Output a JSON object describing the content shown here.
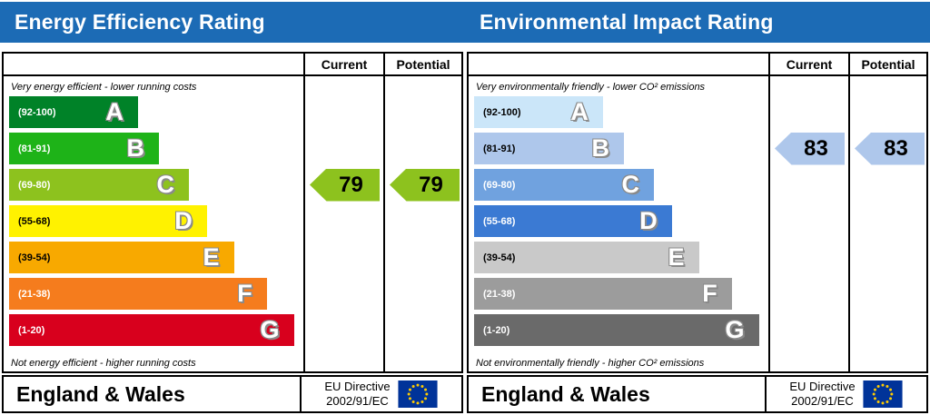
{
  "theme": {
    "header_bg": "#1C6BB5",
    "border": "#000000",
    "flag_bg": "#003399",
    "flag_stars": "#FFCC00"
  },
  "chart_data": [
    {
      "type": "bar",
      "title": "Energy Efficiency Rating",
      "orientation": "horizontal",
      "categories": [
        "A",
        "B",
        "C",
        "D",
        "E",
        "F",
        "G"
      ],
      "band_ranges": [
        "92-100",
        "81-91",
        "69-80",
        "55-68",
        "39-54",
        "21-38",
        "1-20"
      ],
      "values": [
        43,
        50,
        60,
        66,
        75,
        86,
        95
      ],
      "values_note": "relative bar lengths in % of chart column width",
      "current": 79,
      "potential": 79,
      "current_band": "C",
      "potential_band": "C",
      "top_caption": "Very energy efficient - lower running costs",
      "bottom_caption": "Not energy efficient - higher running costs"
    },
    {
      "type": "bar",
      "title": "Environmental Impact Rating",
      "orientation": "horizontal",
      "categories": [
        "A",
        "B",
        "C",
        "D",
        "E",
        "F",
        "G"
      ],
      "band_ranges": [
        "92-100",
        "81-91",
        "69-80",
        "55-68",
        "39-54",
        "21-38",
        "1-20"
      ],
      "values": [
        43,
        50,
        60,
        66,
        75,
        86,
        95
      ],
      "values_note": "relative bar lengths in % of chart column width",
      "current": 83,
      "potential": 83,
      "current_band": "B",
      "potential_band": "B",
      "top_caption": "Very environmentally friendly - lower CO² emissions",
      "bottom_caption": "Not environmentally friendly - higher CO² emissions"
    }
  ],
  "panels": [
    {
      "title": "Energy Efficiency Rating",
      "col_current": "Current",
      "col_potential": "Potential",
      "caption_top": "Very energy efficient - lower running costs",
      "caption_bottom": "Not energy efficient - higher running costs",
      "bands": [
        {
          "letter": "A",
          "range": "(92-100)",
          "width_pct": 43,
          "bg": "#008228",
          "label_color": "#FFFFFF"
        },
        {
          "letter": "B",
          "range": "(81-91)",
          "width_pct": 50,
          "bg": "#1EB318",
          "label_color": "#FFFFFF"
        },
        {
          "letter": "C",
          "range": "(69-80)",
          "width_pct": 60,
          "bg": "#8DC21E",
          "label_color": "#FFFFFF"
        },
        {
          "letter": "D",
          "range": "(55-68)",
          "width_pct": 66,
          "bg": "#FFF200",
          "label_color": "#000000"
        },
        {
          "letter": "E",
          "range": "(39-54)",
          "width_pct": 75,
          "bg": "#F8A900",
          "label_color": "#000000"
        },
        {
          "letter": "F",
          "range": "(21-38)",
          "width_pct": 86,
          "bg": "#F57C1D",
          "label_color": "#FFFFFF"
        },
        {
          "letter": "G",
          "range": "(1-20)",
          "width_pct": 95,
          "bg": "#D8001D",
          "label_color": "#FFFFFF"
        }
      ],
      "current": {
        "value": "79",
        "band_index": 2,
        "color": "#8DC21E"
      },
      "potential": {
        "value": "79",
        "band_index": 2,
        "color": "#8DC21E"
      },
      "footer_region": "England & Wales",
      "directive_line1": "EU Directive",
      "directive_line2": "2002/91/EC"
    },
    {
      "title": "Environmental Impact Rating",
      "col_current": "Current",
      "col_potential": "Potential",
      "caption_top": "Very environmentally friendly - lower CO² emissions",
      "caption_bottom": "Not environmentally friendly - higher CO² emissions",
      "bands": [
        {
          "letter": "A",
          "range": "(92-100)",
          "width_pct": 43,
          "bg": "#CBE6F9",
          "label_color": "#000000"
        },
        {
          "letter": "B",
          "range": "(81-91)",
          "width_pct": 50,
          "bg": "#AEC7EB",
          "label_color": "#000000"
        },
        {
          "letter": "C",
          "range": "(69-80)",
          "width_pct": 60,
          "bg": "#70A2DF",
          "label_color": "#FFFFFF"
        },
        {
          "letter": "D",
          "range": "(55-68)",
          "width_pct": 66,
          "bg": "#3B7AD3",
          "label_color": "#FFFFFF"
        },
        {
          "letter": "E",
          "range": "(39-54)",
          "width_pct": 75,
          "bg": "#C9C9C9",
          "label_color": "#000000"
        },
        {
          "letter": "F",
          "range": "(21-38)",
          "width_pct": 86,
          "bg": "#9C9C9C",
          "label_color": "#FFFFFF"
        },
        {
          "letter": "G",
          "range": "(1-20)",
          "width_pct": 95,
          "bg": "#6A6A6A",
          "label_color": "#FFFFFF"
        }
      ],
      "current": {
        "value": "83",
        "band_index": 1,
        "color": "#AEC7EB"
      },
      "potential": {
        "value": "83",
        "band_index": 1,
        "color": "#AEC7EB"
      },
      "footer_region": "England & Wales",
      "directive_line1": "EU Directive",
      "directive_line2": "2002/91/EC"
    }
  ]
}
